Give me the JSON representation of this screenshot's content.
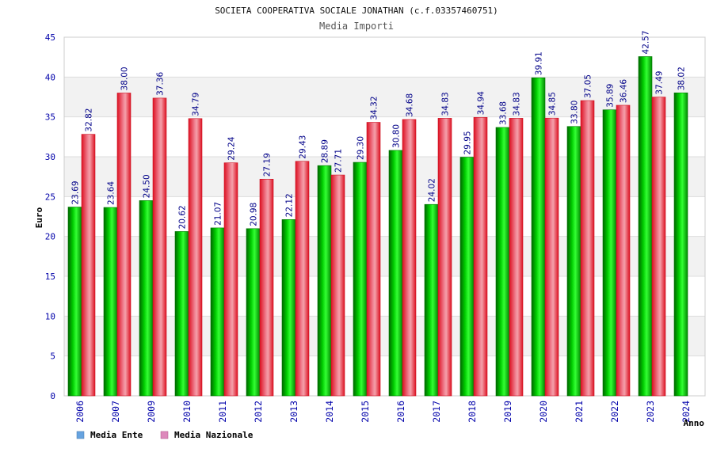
{
  "chart_data": {
    "type": "bar",
    "title": "SOCIETA COOPERATIVA SOCIALE JONATHAN (c.f.03357460751)",
    "subtitle": "Media Importi",
    "xlabel": "Anno",
    "ylabel": "Euro",
    "ylim": [
      0,
      45
    ],
    "yticks": [
      "0",
      "5",
      "10",
      "15",
      "20",
      "25",
      "30",
      "35",
      "40",
      "45"
    ],
    "grid": true,
    "legend_position": "bottom-left",
    "categories": [
      "2006",
      "2007",
      "2009",
      "2010",
      "2011",
      "2012",
      "2013",
      "2014",
      "2015",
      "2016",
      "2017",
      "2018",
      "2019",
      "2020",
      "2021",
      "2022",
      "2023",
      "2024"
    ],
    "series": [
      {
        "name": "Media Ente",
        "color": "#00bb00",
        "legend_swatch": "#66a3e0",
        "values": [
          23.69,
          23.64,
          24.5,
          20.62,
          21.07,
          20.98,
          22.12,
          28.89,
          29.3,
          30.8,
          24.02,
          29.95,
          33.68,
          39.91,
          33.8,
          35.89,
          42.57,
          38.02
        ],
        "labels": [
          "23.69",
          "23.64",
          "24.50",
          "20.62",
          "21.07",
          "20.98",
          "22.12",
          "28.89",
          "29.30",
          "30.80",
          "24.02",
          "29.95",
          "33.68",
          "39.91",
          "33.80",
          "35.89",
          "42.57",
          "38.02"
        ]
      },
      {
        "name": "Media Nazionale",
        "color": "#dd2233",
        "legend_swatch": "#dd88bb",
        "values": [
          32.82,
          38.0,
          37.36,
          34.79,
          29.24,
          27.19,
          29.43,
          27.71,
          34.32,
          34.68,
          34.83,
          34.94,
          34.83,
          34.85,
          37.05,
          36.46,
          37.49,
          null
        ],
        "labels": [
          "32.82",
          "38.00",
          "37.36",
          "34.79",
          "29.24",
          "27.19",
          "29.43",
          "27.71",
          "34.32",
          "34.68",
          "34.83",
          "34.94",
          "34.83",
          "34.85",
          "37.05",
          "36.46",
          "37.49",
          null
        ]
      }
    ]
  }
}
